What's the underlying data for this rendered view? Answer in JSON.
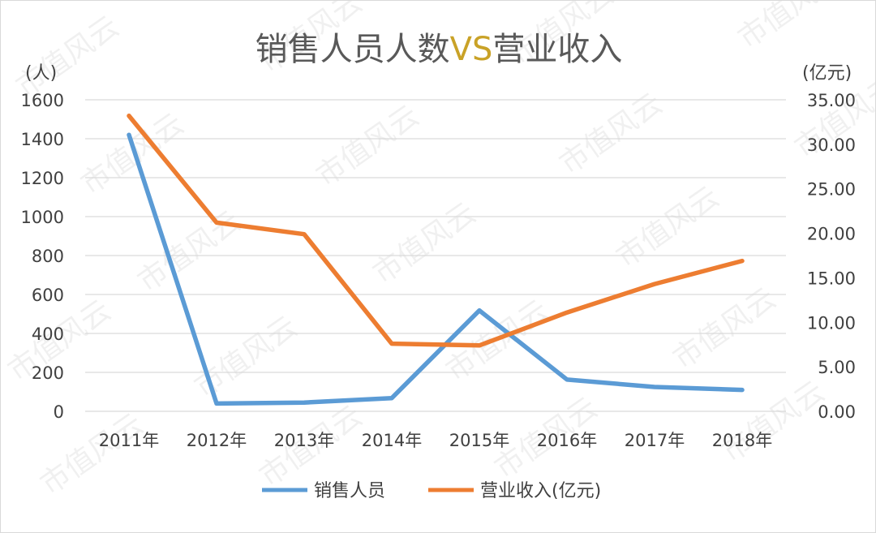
{
  "chart_data": {
    "type": "line",
    "title": {
      "part1": "销售人员人数",
      "part2": "VS",
      "part3": "营业收入"
    },
    "categories": [
      "2011年",
      "2012年",
      "2013年",
      "2014年",
      "2015年",
      "2016年",
      "2017年",
      "2018年"
    ],
    "series": [
      {
        "name": "销售人员",
        "axis": "left",
        "color": "#5b9bd5",
        "values": [
          1420,
          40,
          45,
          68,
          518,
          163,
          125,
          110
        ]
      },
      {
        "name": "营业收入(亿元)",
        "axis": "right",
        "color": "#ed7d31",
        "values": [
          33.2,
          21.2,
          19.9,
          7.6,
          7.4,
          11.1,
          14.3,
          16.9
        ]
      }
    ],
    "y_left": {
      "unit": "(人)",
      "ticks": [
        "0",
        "200",
        "400",
        "600",
        "800",
        "1000",
        "1200",
        "1400",
        "1600"
      ],
      "range": [
        0,
        1600
      ]
    },
    "y_right": {
      "unit": "(亿元)",
      "ticks": [
        "0.00",
        "5.00",
        "10.00",
        "15.00",
        "20.00",
        "25.00",
        "30.00",
        "35.00"
      ],
      "range": [
        0,
        35
      ]
    },
    "grid": true,
    "legend_position": "bottom",
    "watermark": "市值风云"
  }
}
